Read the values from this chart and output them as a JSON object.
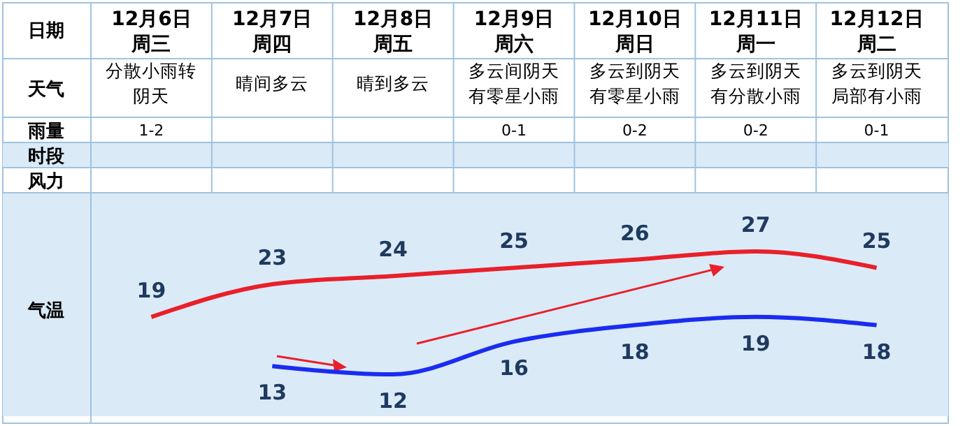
{
  "chart_data": {
    "type": "line",
    "ylabel": "气温",
    "categories": [
      "12月6日周三",
      "12月7日周四",
      "12月8日周五",
      "12月9日周六",
      "12月10日周日",
      "12月11日周一",
      "12月12日周二"
    ],
    "series": [
      {
        "color": "#e8202a",
        "values": [
          19,
          23,
          24,
          25,
          26,
          27,
          25
        ]
      },
      {
        "color": "#1a2cf0",
        "values": [
          null,
          13,
          12,
          16,
          18,
          19,
          18
        ]
      }
    ],
    "data_labels": true,
    "marker": "none",
    "line_style": "solid",
    "annotations": [
      "日期",
      "天气",
      "雨量",
      "时段",
      "风力",
      "分散小雨转阴天",
      "晴间多云",
      "晴到多云",
      "多云间阴天有零星小雨",
      "多云到阴天有零星小雨",
      "多云到阴天有分散小雨",
      "多云到阴天局部有小雨",
      "1-2",
      "0-1",
      "0-2",
      "0-2",
      "0-1"
    ]
  }
}
